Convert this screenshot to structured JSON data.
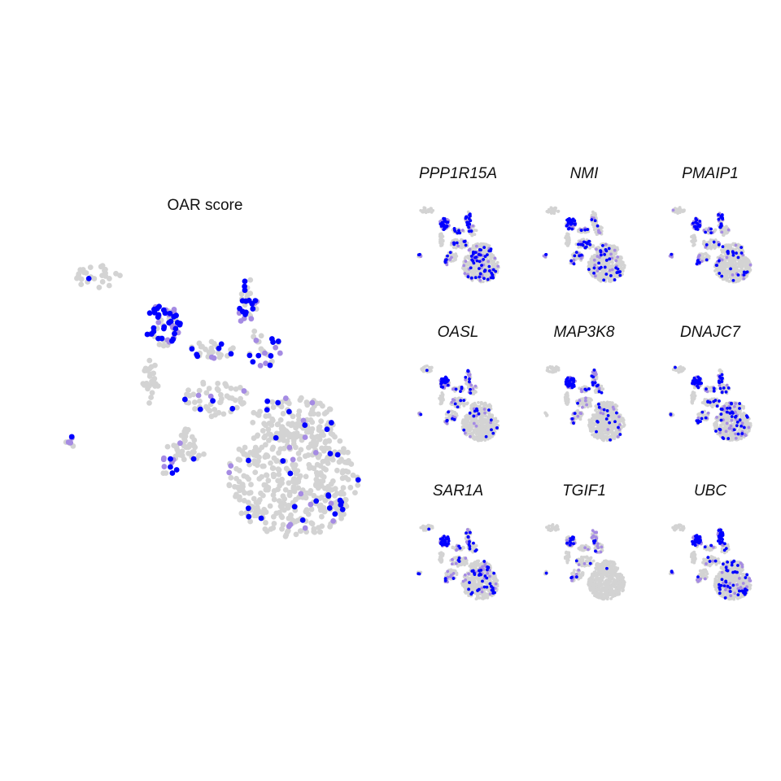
{
  "colors": {
    "background": "#ffffff",
    "low": "#d3d3d3",
    "mid": "#a58be3",
    "high": "#0000ff"
  },
  "chart_data": [
    {
      "type": "scatter",
      "panel": "main",
      "title": "OAR score",
      "xlabel": "",
      "ylabel": "",
      "legend": "none",
      "grid": false,
      "axes_visible": false
    },
    {
      "type": "scatter",
      "panel": "small",
      "title": "PPP1R15A",
      "xlabel": "",
      "ylabel": "",
      "legend": "none",
      "grid": false
    },
    {
      "type": "scatter",
      "panel": "small",
      "title": "NMI",
      "xlabel": "",
      "ylabel": "",
      "legend": "none",
      "grid": false
    },
    {
      "type": "scatter",
      "panel": "small",
      "title": "PMAIP1",
      "xlabel": "",
      "ylabel": "",
      "legend": "none",
      "grid": false
    },
    {
      "type": "scatter",
      "panel": "small",
      "title": "OASL",
      "xlabel": "",
      "ylabel": "",
      "legend": "none",
      "grid": false
    },
    {
      "type": "scatter",
      "panel": "small",
      "title": "MAP3K8",
      "xlabel": "",
      "ylabel": "",
      "legend": "none",
      "grid": false
    },
    {
      "type": "scatter",
      "panel": "small",
      "title": "DNAJC7",
      "xlabel": "",
      "ylabel": "",
      "legend": "none",
      "grid": false
    },
    {
      "type": "scatter",
      "panel": "small",
      "title": "SAR1A",
      "xlabel": "",
      "ylabel": "",
      "legend": "none",
      "grid": false
    },
    {
      "type": "scatter",
      "panel": "small",
      "title": "TGIF1",
      "xlabel": "",
      "ylabel": "",
      "legend": "none",
      "grid": false
    },
    {
      "type": "scatter",
      "panel": "small",
      "title": "UBC",
      "xlabel": "",
      "ylabel": "",
      "legend": "none",
      "grid": false
    }
  ]
}
